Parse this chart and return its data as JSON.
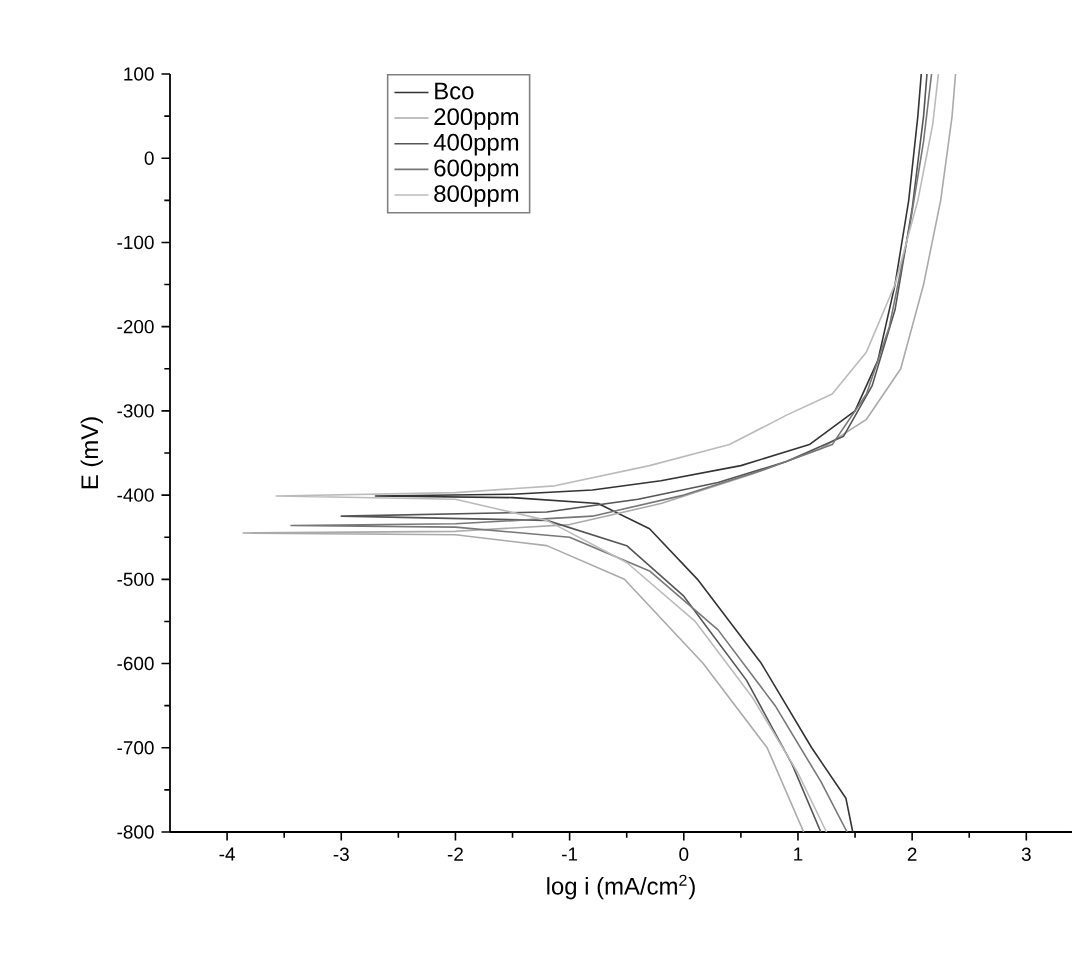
{
  "chart_data": {
    "type": "line",
    "xlabel": "log i (mA/cm$^{2}$)",
    "ylabel": "E (mV)",
    "xlim": [
      -4.5,
      3.4
    ],
    "ylim": [
      -800,
      100
    ],
    "xticks": [
      -4,
      -3,
      -2,
      -1,
      0,
      1,
      2,
      3
    ],
    "yticks": [
      -800,
      -700,
      -600,
      -500,
      -400,
      -300,
      -200,
      -100,
      0,
      100
    ],
    "grid": false,
    "legend": "top",
    "marker": "none",
    "line_style": "solid",
    "series": [
      {
        "name": "Bco",
        "color": "#333333",
        "x": [
          1.48,
          1.42,
          1.12,
          0.68,
          0.12,
          -0.3,
          -0.75,
          -1.5,
          -2.7,
          -1.5,
          -0.8,
          -0.2,
          0.5,
          1.1,
          1.5,
          1.7,
          1.85,
          1.97,
          2.05,
          2.08
        ],
        "values": [
          -800,
          -760,
          -700,
          -600,
          -500,
          -440,
          -410,
          -403,
          -401,
          -399,
          -394,
          -383,
          -365,
          -340,
          -300,
          -240,
          -150,
          -50,
          50,
          100
        ]
      },
      {
        "name": "200ppm",
        "color": "#aaaaaa",
        "x": [
          1.05,
          0.73,
          0.17,
          -0.52,
          -1.2,
          -2.0,
          -3.86,
          -2.0,
          -1.0,
          -0.2,
          0.6,
          1.2,
          1.6,
          1.9,
          2.1,
          2.25,
          2.35,
          2.38
        ],
        "values": [
          -800,
          -700,
          -600,
          -500,
          -460,
          -447,
          -445,
          -443,
          -435,
          -410,
          -375,
          -345,
          -310,
          -250,
          -150,
          -50,
          50,
          100
        ]
      },
      {
        "name": "400ppm",
        "color": "#555555",
        "x": [
          1.2,
          0.95,
          0.55,
          0.0,
          -0.5,
          -1.2,
          -3.0,
          -1.2,
          -0.4,
          0.3,
          0.9,
          1.4,
          1.65,
          1.85,
          2.0,
          2.1,
          2.13
        ],
        "values": [
          -800,
          -720,
          -620,
          -520,
          -460,
          -430,
          -425,
          -420,
          -405,
          -385,
          -360,
          -330,
          -270,
          -180,
          -60,
          50,
          100
        ]
      },
      {
        "name": "600ppm",
        "color": "#777777",
        "x": [
          1.43,
          1.2,
          0.8,
          0.3,
          -0.3,
          -1.0,
          -2.0,
          -3.44,
          -2.0,
          -0.8,
          0.0,
          0.7,
          1.3,
          1.6,
          1.8,
          1.98,
          2.1,
          2.17
        ],
        "values": [
          -800,
          -740,
          -650,
          -560,
          -490,
          -450,
          -438,
          -436,
          -434,
          -425,
          -400,
          -370,
          -340,
          -280,
          -200,
          -80,
          20,
          100
        ]
      },
      {
        "name": "800ppm",
        "color": "#bbbbbb",
        "x": [
          1.25,
          1.0,
          0.6,
          0.1,
          -0.5,
          -1.2,
          -2.0,
          -3.57,
          -2.0,
          -1.13,
          -0.3,
          0.4,
          0.9,
          1.3,
          1.6,
          1.85,
          2.05,
          2.18,
          2.23
        ],
        "values": [
          -800,
          -730,
          -640,
          -550,
          -480,
          -430,
          -405,
          -401,
          -397,
          -389,
          -365,
          -340,
          -305,
          -280,
          -230,
          -150,
          -50,
          40,
          100
        ]
      }
    ]
  }
}
